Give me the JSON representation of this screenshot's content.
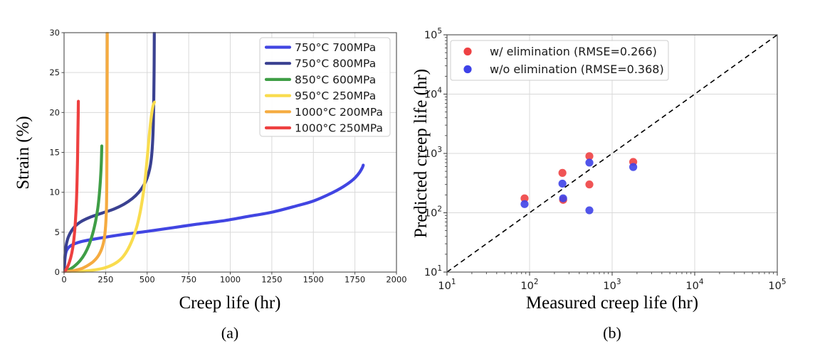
{
  "figure": {
    "background": "#ffffff",
    "panels": [
      {
        "caption": "(a)"
      },
      {
        "caption": "(b)"
      }
    ]
  },
  "colors": {
    "grid": "#d9d9d9",
    "spine": "#5a5a5a",
    "tick": "#444444",
    "reference_line": "#000000"
  },
  "chart_data": [
    {
      "type": "line",
      "xlabel": "Creep life (hr)",
      "ylabel": "Strain (%)",
      "xlim": [
        0,
        2000
      ],
      "ylim": [
        0,
        30
      ],
      "xticks": [
        0,
        250,
        500,
        750,
        1000,
        1250,
        1500,
        1750,
        2000
      ],
      "yticks": [
        0,
        5,
        10,
        15,
        20,
        25,
        30
      ],
      "grid": true,
      "legend_position": "upper right",
      "series": [
        {
          "name": "750°C 700MPa",
          "color": "#4145e2",
          "points": [
            [
              0,
              0
            ],
            [
              6,
              1.8
            ],
            [
              15,
              2.7
            ],
            [
              40,
              3.3
            ],
            [
              100,
              3.8
            ],
            [
              200,
              4.2
            ],
            [
              350,
              4.7
            ],
            [
              500,
              5.1
            ],
            [
              650,
              5.55
            ],
            [
              800,
              6.0
            ],
            [
              950,
              6.4
            ],
            [
              1100,
              6.95
            ],
            [
              1250,
              7.5
            ],
            [
              1400,
              8.3
            ],
            [
              1500,
              8.9
            ],
            [
              1600,
              9.8
            ],
            [
              1680,
              10.7
            ],
            [
              1740,
              11.6
            ],
            [
              1775,
              12.4
            ],
            [
              1795,
              13.1
            ],
            [
              1800,
              13.4
            ]
          ]
        },
        {
          "name": "750°C 800MPa",
          "color": "#3a4191",
          "points": [
            [
              0,
              0
            ],
            [
              6,
              2.2
            ],
            [
              15,
              3.6
            ],
            [
              30,
              4.6
            ],
            [
              60,
              5.6
            ],
            [
              100,
              6.3
            ],
            [
              160,
              6.9
            ],
            [
              230,
              7.4
            ],
            [
              300,
              7.9
            ],
            [
              360,
              8.5
            ],
            [
              410,
              9.2
            ],
            [
              450,
              10.0
            ],
            [
              480,
              10.9
            ],
            [
              500,
              11.8
            ],
            [
              515,
              12.9
            ],
            [
              525,
              14.2
            ],
            [
              532,
              16.0
            ],
            [
              537,
              18.5
            ],
            [
              540,
              22.0
            ],
            [
              542,
              26.0
            ],
            [
              543,
              30
            ]
          ]
        },
        {
          "name": "850°C 600MPa",
          "color": "#3f9e46",
          "points": [
            [
              0,
              0
            ],
            [
              30,
              0.3
            ],
            [
              60,
              0.7
            ],
            [
              95,
              1.4
            ],
            [
              125,
              2.3
            ],
            [
              150,
              3.4
            ],
            [
              172,
              4.8
            ],
            [
              190,
              6.4
            ],
            [
              203,
              8.0
            ],
            [
              212,
              9.7
            ],
            [
              219,
              11.6
            ],
            [
              224,
              13.6
            ],
            [
              227,
              15.8
            ]
          ]
        },
        {
          "name": "950°C 250MPa",
          "color": "#f9dc4e",
          "points": [
            [
              0,
              0
            ],
            [
              80,
              0.05
            ],
            [
              160,
              0.2
            ],
            [
              240,
              0.5
            ],
            [
              300,
              1.0
            ],
            [
              345,
              1.7
            ],
            [
              380,
              2.7
            ],
            [
              410,
              4.0
            ],
            [
              435,
              5.5
            ],
            [
              455,
              7.2
            ],
            [
              472,
              9.2
            ],
            [
              487,
              11.5
            ],
            [
              500,
              14.2
            ],
            [
              512,
              17.0
            ],
            [
              525,
              19.5
            ],
            [
              535,
              20.8
            ],
            [
              544,
              21.3
            ]
          ]
        },
        {
          "name": "1000°C 200MPa",
          "color": "#f5ab40",
          "points": [
            [
              0,
              0
            ],
            [
              50,
              0.15
            ],
            [
              100,
              0.4
            ],
            [
              140,
              0.8
            ],
            [
              175,
              1.3
            ],
            [
              205,
              2.0
            ],
            [
              228,
              3.0
            ],
            [
              242,
              4.2
            ],
            [
              250,
              5.8
            ],
            [
              255,
              8.0
            ],
            [
              257,
              11.0
            ],
            [
              258,
              15.0
            ],
            [
              259,
              21.0
            ],
            [
              260,
              30
            ]
          ]
        },
        {
          "name": "1000°C 250MPa",
          "color": "#ee4040",
          "points": [
            [
              0,
              0
            ],
            [
              12,
              0.3
            ],
            [
              26,
              0.9
            ],
            [
              40,
              1.8
            ],
            [
              52,
              3.0
            ],
            [
              61,
              4.5
            ],
            [
              68,
              6.3
            ],
            [
              74,
              8.6
            ],
            [
              78,
              11.2
            ],
            [
              81,
              14.0
            ],
            [
              83,
              17.0
            ],
            [
              85,
              19.6
            ],
            [
              86,
              21.4
            ]
          ]
        }
      ]
    },
    {
      "type": "scatter",
      "xlabel": "Measured creep life (hr)",
      "ylabel": "Predicted creep life (hr)",
      "xscale": "log",
      "yscale": "log",
      "xlim": [
        10,
        100000
      ],
      "ylim": [
        10,
        100000
      ],
      "tick_exponents": [
        1,
        2,
        3,
        4,
        5
      ],
      "tick_base": "10",
      "grid": true,
      "legend_position": "upper left",
      "reference_line": {
        "name": "identity-line",
        "style": "dashed",
        "from": [
          10,
          10
        ],
        "to": [
          100000,
          100000
        ]
      },
      "series": [
        {
          "name": "w/ elimination (RMSE=0.266)",
          "color": "#ee4143",
          "points": [
            [
              87,
              175
            ],
            [
              250,
              470
            ],
            [
              255,
              165
            ],
            [
              530,
              900
            ],
            [
              530,
              300
            ],
            [
              1800,
              720
            ]
          ]
        },
        {
          "name": "w/o elimination (RMSE=0.368)",
          "color": "#3e42e8",
          "points": [
            [
              87,
              140
            ],
            [
              250,
              310
            ],
            [
              255,
              175
            ],
            [
              530,
              700
            ],
            [
              530,
              110
            ],
            [
              1800,
              590
            ]
          ]
        }
      ]
    }
  ]
}
